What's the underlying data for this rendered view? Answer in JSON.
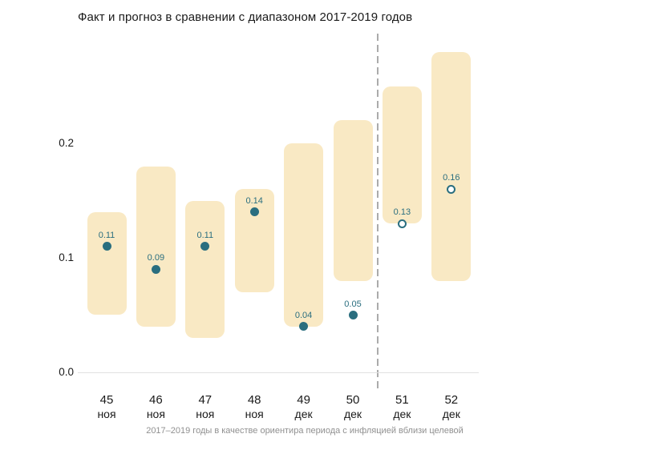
{
  "chart_data": {
    "type": "bar",
    "subtype": "range-band-with-dots",
    "title": "Факт и прогноз в сравнении с диапазоном 2017-2019 годов",
    "caption": "2017–2019 годы в качестве ориентира периода с инфляцией вблизи целевой",
    "legend": "none",
    "grid": "zero-baseline-only",
    "ylim": [
      0,
      0.3
    ],
    "y_ticks": [
      {
        "value": 0.0,
        "label": "0.0"
      },
      {
        "value": 0.1,
        "label": "0.1"
      },
      {
        "value": 0.2,
        "label": "0.2"
      }
    ],
    "categories": [
      {
        "week": "45",
        "month": "ноя"
      },
      {
        "week": "46",
        "month": "ноя"
      },
      {
        "week": "47",
        "month": "ноя"
      },
      {
        "week": "48",
        "month": "ноя"
      },
      {
        "week": "49",
        "month": "дек"
      },
      {
        "week": "50",
        "month": "дек"
      },
      {
        "week": "51",
        "month": "дек"
      },
      {
        "week": "52",
        "month": "дек"
      }
    ],
    "series": [
      {
        "name": "диапазон 2017-2019 годов",
        "kind": "range-band"
      },
      {
        "name": "факт",
        "kind": "filled-dot"
      },
      {
        "name": "прогноз",
        "kind": "open-dot"
      }
    ],
    "ranges": [
      [
        0.05,
        0.14
      ],
      [
        0.04,
        0.18
      ],
      [
        0.03,
        0.15
      ],
      [
        0.07,
        0.16
      ],
      [
        0.04,
        0.2
      ],
      [
        0.08,
        0.22
      ],
      [
        0.13,
        0.25
      ],
      [
        0.08,
        0.28
      ]
    ],
    "points": [
      {
        "index": 0,
        "value": 0.11,
        "label": "0.11",
        "kind": "fact"
      },
      {
        "index": 1,
        "value": 0.09,
        "label": "0.09",
        "kind": "fact"
      },
      {
        "index": 2,
        "value": 0.11,
        "label": "0.11",
        "kind": "fact"
      },
      {
        "index": 3,
        "value": 0.14,
        "label": "0.14",
        "kind": "fact"
      },
      {
        "index": 4,
        "value": 0.04,
        "label": "0.04",
        "kind": "fact"
      },
      {
        "index": 5,
        "value": 0.05,
        "label": "0.05",
        "kind": "fact"
      },
      {
        "index": 6,
        "value": 0.13,
        "label": "0.13",
        "kind": "forecast"
      },
      {
        "index": 7,
        "value": 0.16,
        "label": "0.16",
        "kind": "forecast"
      }
    ],
    "divider": {
      "after_index": 5,
      "style": "dashed"
    },
    "colors": {
      "band": "#F9E9C4",
      "point": "#2A6E7F",
      "point_open_fill": "#FFFFFF",
      "value_label": "#2A6E7F",
      "divider": "#ABABAB",
      "baseline": "#E2E2E2",
      "axis_text": "#1A1A1A",
      "caption": "#909090",
      "title": "#1A1A1A"
    }
  }
}
